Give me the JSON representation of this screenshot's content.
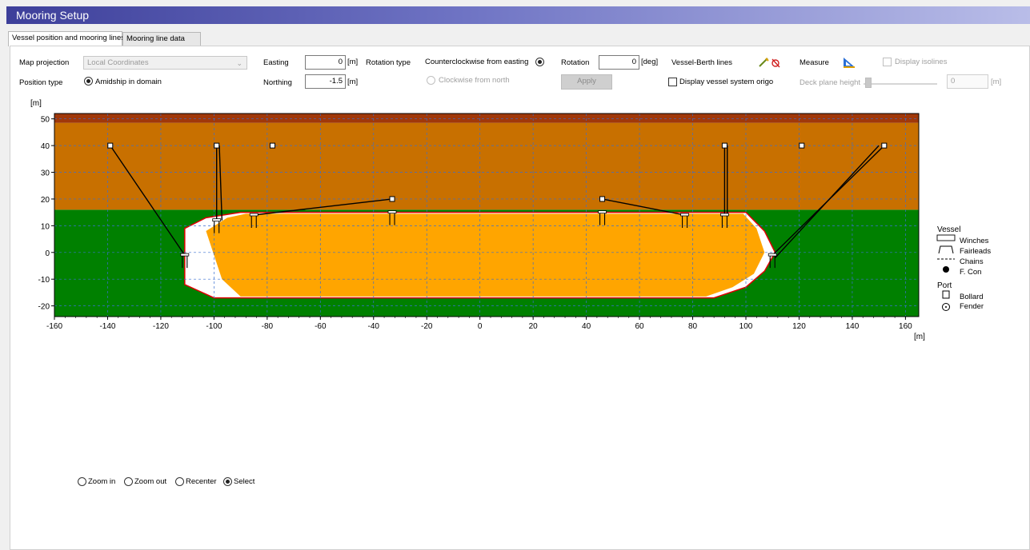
{
  "window": {
    "title": "Mooring Setup"
  },
  "tabs": [
    {
      "label": "Vessel position and mooring lines"
    },
    {
      "label": "Mooring line data"
    }
  ],
  "controls": {
    "map_projection_label": "Map projection",
    "map_projection_value": "Local Coordinates",
    "position_type_label": "Position type",
    "position_type_option": "Amidship in domain",
    "easting_label": "Easting",
    "easting_value": "0",
    "easting_unit": "[m]",
    "northing_label": "Northing",
    "northing_value": "-1.5",
    "northing_unit": "[m]",
    "rotation_type_label": "Rotation type",
    "rotation_ccw_label": "Counterclockwise from easting",
    "rotation_cw_label": "Clockwise from north",
    "rotation_label": "Rotation",
    "rotation_value": "0",
    "rotation_unit": "[deg]",
    "apply_label": "Apply",
    "vessel_berth_label": "Vessel-Berth lines",
    "measure_label": "Measure",
    "display_origo_label": "Display vessel system origo",
    "display_isolines_label": "Display isolines",
    "deck_plane_label": "Deck plane height",
    "deck_plane_value": "0",
    "deck_plane_unit": "[m]"
  },
  "chart_data": {
    "type": "scatter",
    "title": "",
    "xlabel": "[m]",
    "ylabel": "[m]",
    "xlim": [
      -160,
      165
    ],
    "ylim": [
      -24,
      52
    ],
    "x_ticks": [
      -160,
      -140,
      -120,
      -100,
      -80,
      -60,
      -40,
      -20,
      0,
      20,
      40,
      60,
      80,
      100,
      120,
      140,
      160
    ],
    "y_ticks": [
      -20,
      -10,
      0,
      10,
      20,
      30,
      40,
      50
    ],
    "grid": true,
    "zones": [
      {
        "name": "water",
        "y_from": -24,
        "y_to": 16,
        "color": "#008000"
      },
      {
        "name": "quay",
        "y_from": 16,
        "y_to": 48.5,
        "color": "#c87000"
      },
      {
        "name": "quay-edge",
        "y_from": 48.5,
        "y_to": 52,
        "color": "#a0380a"
      }
    ],
    "colors": {
      "vessel_fill": "#ffa500",
      "vessel_outline": "#e00000",
      "vessel_deck_margin": "#ffffff",
      "grid": "#3a6fd0",
      "mooring_line": "#000000"
    },
    "bollards": [
      {
        "x": -139,
        "y": 40
      },
      {
        "x": -99,
        "y": 40
      },
      {
        "x": -78,
        "y": 40
      },
      {
        "x": -33,
        "y": 20
      },
      {
        "x": 46,
        "y": 20
      },
      {
        "x": 92,
        "y": 40
      },
      {
        "x": 121,
        "y": 40
      },
      {
        "x": 152,
        "y": 40
      }
    ],
    "fairleads": [
      {
        "x": -111,
        "y": -1
      },
      {
        "x": -99,
        "y": 12
      },
      {
        "x": -85,
        "y": 14
      },
      {
        "x": -33,
        "y": 15
      },
      {
        "x": 46,
        "y": 15
      },
      {
        "x": 77,
        "y": 14
      },
      {
        "x": 92,
        "y": 14
      },
      {
        "x": 110,
        "y": -1
      }
    ],
    "lines": [
      {
        "from": [
          -139,
          40
        ],
        "to": [
          -111,
          -1
        ]
      },
      {
        "from": [
          -99,
          40
        ],
        "to": [
          -99,
          12
        ]
      },
      {
        "from": [
          -98,
          40
        ],
        "to": [
          -97,
          12
        ]
      },
      {
        "from": [
          -33,
          20
        ],
        "to": [
          -85,
          14
        ]
      },
      {
        "from": [
          46,
          20
        ],
        "to": [
          77,
          14
        ]
      },
      {
        "from": [
          92,
          40
        ],
        "to": [
          92,
          14
        ]
      },
      {
        "from": [
          93,
          40
        ],
        "to": [
          93,
          14
        ]
      },
      {
        "from": [
          152,
          40
        ],
        "to": [
          110,
          -1
        ]
      },
      {
        "from": [
          150,
          40
        ],
        "to": [
          111,
          -2
        ]
      }
    ],
    "legend": {
      "vessel_title": "Vessel",
      "vessel_items": [
        "Winches",
        "Fairleads",
        "Chains",
        "F. Con"
      ],
      "port_title": "Port",
      "port_items": [
        "Bollard",
        "Fender"
      ]
    }
  },
  "zoom": {
    "zoom_in": "Zoom in",
    "zoom_out": "Zoom out",
    "recenter": "Recenter",
    "select": "Select"
  }
}
